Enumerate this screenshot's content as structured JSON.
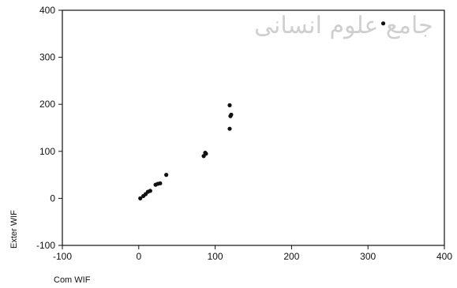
{
  "chart_data": {
    "type": "scatter",
    "title": "",
    "xlabel": "Com WIF",
    "ylabel": "Exter WIF",
    "xlim": [
      -100,
      400
    ],
    "ylim": [
      -100,
      400
    ],
    "xticks": [
      -100,
      0,
      100,
      200,
      300,
      400
    ],
    "yticks": [
      -100,
      0,
      100,
      200,
      300,
      400
    ],
    "grid": false,
    "legend": "none",
    "point_color": "#111111",
    "points": [
      {
        "x": 2,
        "y": 0
      },
      {
        "x": 6,
        "y": 5
      },
      {
        "x": 9,
        "y": 9
      },
      {
        "x": 12,
        "y": 14
      },
      {
        "x": 15,
        "y": 16
      },
      {
        "x": 22,
        "y": 29
      },
      {
        "x": 25,
        "y": 31
      },
      {
        "x": 28,
        "y": 32
      },
      {
        "x": 36,
        "y": 50
      },
      {
        "x": 85,
        "y": 90
      },
      {
        "x": 88,
        "y": 95
      },
      {
        "x": 87,
        "y": 97
      },
      {
        "x": 119,
        "y": 148
      },
      {
        "x": 120,
        "y": 175
      },
      {
        "x": 121,
        "y": 178
      },
      {
        "x": 119,
        "y": 198
      },
      {
        "x": 320,
        "y": 372
      }
    ]
  },
  "watermark_text": "جامع علوم انسانی"
}
